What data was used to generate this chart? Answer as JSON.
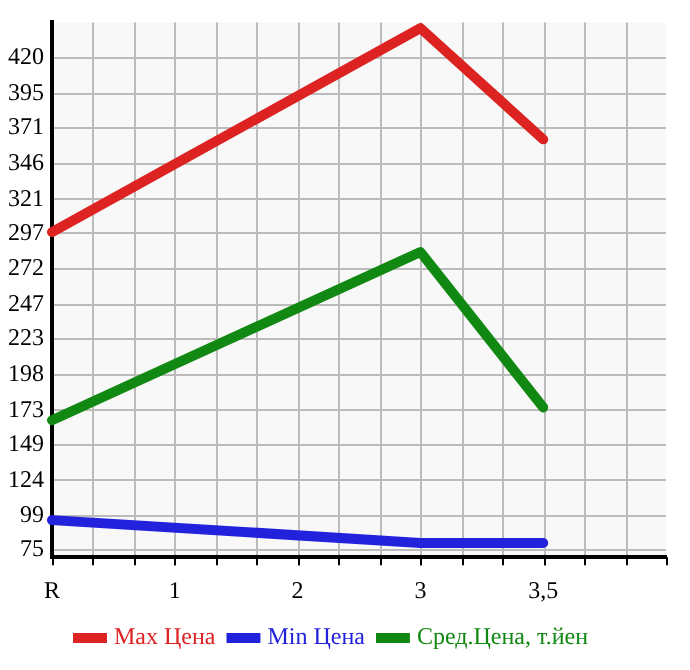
{
  "chart_data": {
    "type": "line",
    "categories": [
      "R",
      "1",
      "2",
      "3",
      "3,5",
      null
    ],
    "series": [
      {
        "name": "Max Цена",
        "color": "#dd2222",
        "values": [
          298,
          null,
          null,
          441,
          363,
          null
        ]
      },
      {
        "name": "Min Цена",
        "color": "#2222dd",
        "values": [
          96,
          null,
          null,
          80,
          80,
          null
        ]
      },
      {
        "name": "Сред.Цена, т.йен",
        "color": "#118811",
        "values": [
          166,
          null,
          null,
          284,
          175,
          null
        ]
      }
    ],
    "ylim": [
      70,
      445
    ],
    "yticks": [
      75,
      99,
      124,
      149,
      173,
      198,
      223,
      247,
      272,
      297,
      321,
      346,
      371,
      395,
      420
    ],
    "grid": true,
    "legend": "bottom",
    "marker": "none",
    "line_style": "solid"
  }
}
